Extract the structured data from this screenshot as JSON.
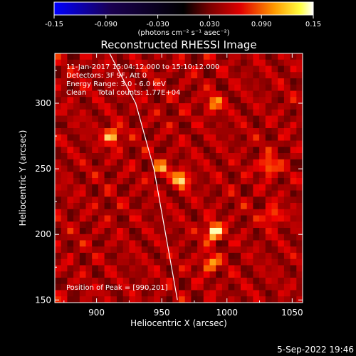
{
  "colorbar": {
    "tick_labels": [
      "-0.15",
      "-0.090",
      "-0.030",
      "0.030",
      "0.090",
      "0.15"
    ],
    "tick_values": [
      -0.15,
      -0.09,
      -0.03,
      0.03,
      0.09,
      0.15
    ],
    "range": [
      -0.15,
      0.15
    ],
    "unit_label": "(photons cm⁻² s⁻¹ asec⁻²)",
    "colors": [
      "#0000ff",
      "#000000",
      "#ff0000",
      "#ffff00",
      "#ffffff"
    ]
  },
  "title": "Reconstructed RHESSI Image",
  "info": {
    "line1": "11-Jan-2017 15:04:12.000 to 15:10:12.000",
    "line2": "Detectors: 3F 9F, Att 0",
    "line3": "Energy Range: 3.0 - 6.0 keV",
    "line4": "Clean     Total counts: 1.77E+04",
    "peak": "Position of Peak = [990,201]"
  },
  "footer_date": "5-Sep-2022 19:46",
  "chart_data": {
    "type": "heatmap",
    "xlabel": "Heliocentric X (arcsec)",
    "ylabel": "Heliocentric Y (arcsec)",
    "xlim": [
      868,
      1058
    ],
    "ylim": [
      148,
      338
    ],
    "x_ticks": [
      900,
      950,
      1000,
      1050
    ],
    "y_ticks": [
      150,
      200,
      250,
      300
    ],
    "x_tick_labels": [
      "900",
      "950",
      "1000",
      "1050"
    ],
    "y_tick_labels": [
      "150",
      "200",
      "250",
      "300"
    ],
    "peak_position": [
      990,
      201
    ],
    "limb_curve": [
      [
        910,
        338
      ],
      [
        930,
        300
      ],
      [
        944,
        250
      ],
      [
        953,
        200
      ],
      [
        962,
        150
      ]
    ],
    "bright_sources": [
      {
        "x": 990,
        "y": 202,
        "level": 0.15
      },
      {
        "x": 965,
        "y": 242,
        "level": 0.11
      },
      {
        "x": 912,
        "y": 275,
        "level": 0.11
      },
      {
        "x": 1032,
        "y": 252,
        "level": 0.1
      },
      {
        "x": 987,
        "y": 178,
        "level": 0.09
      },
      {
        "x": 1035,
        "y": 214,
        "level": 0.08
      },
      {
        "x": 990,
        "y": 300,
        "level": 0.08
      },
      {
        "x": 950,
        "y": 250,
        "level": 0.07
      }
    ]
  }
}
